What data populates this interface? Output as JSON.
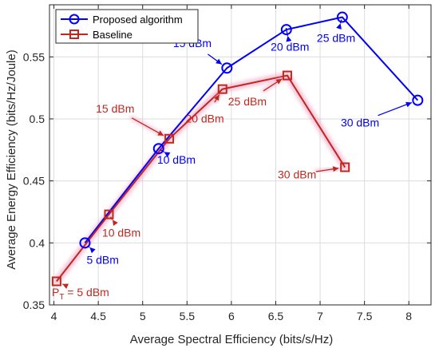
{
  "chart_data": {
    "type": "line",
    "title": "",
    "xlabel": "Average Spectral Efficiency (bits/s/Hz)",
    "ylabel": "Average Energy Efficiency (bits/Hz/Joule)",
    "xlim": [
      3.95,
      8.25
    ],
    "ylim": [
      0.35,
      0.592
    ],
    "xticks": [
      4,
      4.5,
      5,
      5.5,
      6,
      6.5,
      7,
      7.5,
      8
    ],
    "xtick_labels": [
      "4",
      "4.5",
      "5",
      "5.5",
      "6",
      "6.5",
      "7",
      "7.5",
      "8"
    ],
    "yticks": [
      0.35,
      0.4,
      0.45,
      0.5,
      0.55
    ],
    "ytick_labels": [
      "0.35",
      "0.4",
      "0.45",
      "0.5",
      "0.55"
    ],
    "grid": true,
    "legend_position": "top-left",
    "series": [
      {
        "name": "Proposed algorithm",
        "color": "#0000ff",
        "marker": "circle",
        "x": [
          4.35,
          5.18,
          5.95,
          6.62,
          7.25,
          8.1
        ],
        "y": [
          0.4,
          0.476,
          0.541,
          0.572,
          0.582,
          0.515
        ]
      },
      {
        "name": "Baseline",
        "color": "#c0271f",
        "marker": "square",
        "x": [
          4.03,
          4.62,
          5.3,
          5.9,
          6.63,
          7.28
        ],
        "y": [
          0.369,
          0.423,
          0.484,
          0.524,
          0.535,
          0.461
        ]
      }
    ],
    "annotations": [
      {
        "text": "5 dBm",
        "series": 0,
        "point": 0,
        "color": "#0000ff",
        "label_x": 4.55,
        "label_y": 0.383
      },
      {
        "text": "10 dBm",
        "series": 0,
        "point": 1,
        "color": "#0000ff",
        "label_x": 5.38,
        "label_y": 0.464
      },
      {
        "text": "15 dBm",
        "series": 0,
        "point": 2,
        "color": "#0000ff",
        "label_x": 5.56,
        "label_y": 0.558
      },
      {
        "text": "20 dBm",
        "series": 0,
        "point": 3,
        "color": "#0000ff",
        "label_x": 6.66,
        "label_y": 0.555
      },
      {
        "text": "25 dBm",
        "series": 0,
        "point": 4,
        "color": "#0000ff",
        "label_x": 7.18,
        "label_y": 0.562
      },
      {
        "text": "30 dBm",
        "series": 0,
        "point": 5,
        "color": "#0000ff",
        "label_x": 7.45,
        "label_y": 0.494
      },
      {
        "text": "P",
        "subscript": "T",
        "suffix": " = 5 dBm",
        "series": 1,
        "point": 0,
        "color": "#c0271f",
        "label_x": 4.3,
        "label_y": 0.357
      },
      {
        "text": "10 dBm",
        "series": 1,
        "point": 1,
        "color": "#c0271f",
        "label_x": 4.76,
        "label_y": 0.405
      },
      {
        "text": "15 dBm",
        "series": 1,
        "point": 2,
        "color": "#c0271f",
        "label_x": 4.69,
        "label_y": 0.505
      },
      {
        "text": "20 dBm",
        "series": 1,
        "point": 3,
        "color": "#c0271f",
        "label_x": 5.7,
        "label_y": 0.497
      },
      {
        "text": "25 dBm",
        "series": 1,
        "point": 4,
        "color": "#c0271f",
        "label_x": 6.18,
        "label_y": 0.511
      },
      {
        "text": "30 dBm",
        "series": 1,
        "point": 5,
        "color": "#c0271f",
        "label_x": 6.74,
        "label_y": 0.452
      }
    ]
  }
}
